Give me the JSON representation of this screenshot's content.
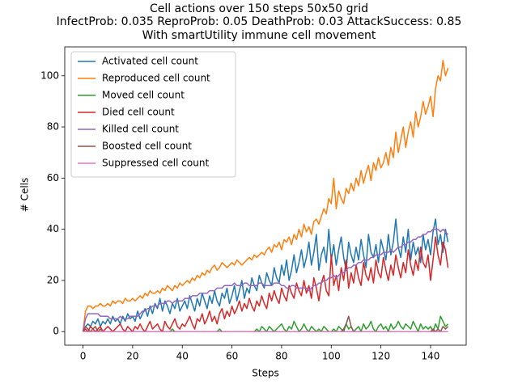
{
  "chart_data": {
    "type": "line",
    "title": [
      "Cell actions over 150 steps 50x50 grid",
      "InfectProb: 0.035 ReproProb: 0.05 DeathProb: 0.03 AttackSuccess: 0.85",
      "With smartUtility immune cell movement"
    ],
    "x_label": "Steps",
    "y_label": "# Cells",
    "xlim": [
      -7.35,
      154.35
    ],
    "ylim": [
      -5.3,
      111.3
    ],
    "xticks": [
      0,
      20,
      40,
      60,
      80,
      100,
      120,
      140
    ],
    "yticks": [
      0,
      20,
      40,
      60,
      80,
      100
    ],
    "legend": "upper left",
    "x": [
      0,
      1,
      2,
      3,
      4,
      5,
      6,
      7,
      8,
      9,
      10,
      11,
      12,
      13,
      14,
      15,
      16,
      17,
      18,
      19,
      20,
      21,
      22,
      23,
      24,
      25,
      26,
      27,
      28,
      29,
      30,
      31,
      32,
      33,
      34,
      35,
      36,
      37,
      38,
      39,
      40,
      41,
      42,
      43,
      44,
      45,
      46,
      47,
      48,
      49,
      50,
      51,
      52,
      53,
      54,
      55,
      56,
      57,
      58,
      59,
      60,
      61,
      62,
      63,
      64,
      65,
      66,
      67,
      68,
      69,
      70,
      71,
      72,
      73,
      74,
      75,
      76,
      77,
      78,
      79,
      80,
      81,
      82,
      83,
      84,
      85,
      86,
      87,
      88,
      89,
      90,
      91,
      92,
      93,
      94,
      95,
      96,
      97,
      98,
      99,
      100,
      101,
      102,
      103,
      104,
      105,
      106,
      107,
      108,
      109,
      110,
      111,
      112,
      113,
      114,
      115,
      116,
      117,
      118,
      119,
      120,
      121,
      122,
      123,
      124,
      125,
      126,
      127,
      128,
      129,
      130,
      131,
      132,
      133,
      134,
      135,
      136,
      137,
      138,
      139,
      140,
      141,
      142,
      143,
      144,
      145,
      146,
      147
    ],
    "series": [
      {
        "name": "Activated cell count",
        "color": "#1f77b4",
        "values": [
          0,
          2,
          3,
          2,
          4,
          3,
          5,
          2,
          4,
          3,
          5,
          3,
          6,
          4,
          5,
          3,
          6,
          4,
          7,
          5,
          6,
          4,
          8,
          5,
          7,
          9,
          6,
          10,
          7,
          11,
          9,
          13,
          8,
          12,
          10,
          7,
          11,
          9,
          13,
          8,
          10,
          12,
          9,
          14,
          11,
          8,
          13,
          10,
          15,
          12,
          9,
          14,
          11,
          16,
          12,
          10,
          15,
          13,
          17,
          11,
          14,
          18,
          12,
          16,
          20,
          13,
          17,
          15,
          21,
          18,
          16,
          22,
          19,
          17,
          23,
          20,
          18,
          25,
          21,
          19,
          26,
          22,
          28,
          20,
          24,
          30,
          23,
          27,
          32,
          25,
          29,
          35,
          26,
          31,
          38,
          24,
          30,
          33,
          27,
          40,
          28,
          34,
          26,
          32,
          37,
          29,
          24,
          35,
          30,
          27,
          33,
          28,
          36,
          30,
          25,
          38,
          31,
          29,
          34,
          27,
          36,
          32,
          28,
          38,
          30,
          35,
          44,
          33,
          29,
          37,
          31,
          40,
          28,
          35,
          30,
          33,
          27,
          38,
          32,
          36,
          30,
          39,
          44,
          34,
          38,
          31,
          40,
          35
        ]
      },
      {
        "name": "Reproduced cell count",
        "color": "#ff7f0e",
        "values": [
          0,
          8,
          10,
          10,
          9,
          10,
          10,
          11,
          10,
          10,
          11,
          10,
          12,
          11,
          12,
          12,
          11,
          13,
          12,
          12,
          13,
          12,
          13,
          14,
          13,
          15,
          14,
          16,
          15,
          15,
          16,
          15,
          17,
          16,
          18,
          17,
          16,
          18,
          17,
          19,
          18,
          19,
          20,
          19,
          21,
          20,
          22,
          21,
          23,
          22,
          24,
          23,
          25,
          26,
          24,
          25,
          27,
          26,
          25,
          26,
          27,
          26,
          28,
          27,
          26,
          27,
          28,
          29,
          28,
          30,
          29,
          30,
          31,
          30,
          32,
          33,
          31,
          34,
          33,
          35,
          32,
          36,
          35,
          37,
          34,
          38,
          36,
          40,
          37,
          42,
          39,
          41,
          38,
          43,
          44,
          42,
          45,
          48,
          46,
          52,
          50,
          60,
          48,
          55,
          52,
          50,
          56,
          54,
          58,
          55,
          60,
          57,
          63,
          58,
          62,
          65,
          59,
          66,
          63,
          68,
          64,
          66,
          70,
          65,
          72,
          68,
          78,
          70,
          75,
          80,
          72,
          78,
          82,
          76,
          86,
          80,
          84,
          90,
          85,
          88,
          92,
          84,
          95,
          100,
          98,
          106,
          100,
          103
        ]
      },
      {
        "name": "Moved cell count",
        "color": "#2ca02c",
        "values": [
          0,
          0,
          0,
          0,
          0,
          0,
          0,
          0,
          0,
          0,
          0,
          0,
          0,
          0,
          0,
          0,
          0,
          0,
          0,
          0,
          0,
          0,
          0,
          0,
          0,
          0,
          0,
          0,
          0,
          0,
          0,
          0,
          0,
          0,
          0,
          0,
          1,
          0,
          0,
          0,
          0,
          0,
          0,
          0,
          0,
          0,
          0,
          0,
          0,
          0,
          0,
          0,
          0,
          0,
          0,
          1,
          0,
          0,
          0,
          0,
          0,
          0,
          0,
          0,
          0,
          0,
          0,
          0,
          0,
          0,
          1,
          0,
          2,
          1,
          0,
          2,
          1,
          0,
          1,
          2,
          3,
          1,
          0,
          2,
          1,
          4,
          2,
          0,
          1,
          3,
          1,
          0,
          2,
          1,
          0,
          1,
          0,
          2,
          1,
          0,
          0,
          1,
          0,
          2,
          1,
          0,
          3,
          1,
          2,
          0,
          1,
          2,
          0,
          3,
          1,
          2,
          4,
          1,
          0,
          2,
          3,
          1,
          2,
          0,
          3,
          1,
          2,
          4,
          2,
          1,
          3,
          2,
          1,
          4,
          2,
          0,
          3,
          1,
          2,
          1,
          2,
          0,
          3,
          1,
          6,
          4,
          2,
          3
        ]
      },
      {
        "name": "Died cell count",
        "color": "#d62728",
        "values": [
          0,
          1,
          0,
          2,
          1,
          0,
          1,
          2,
          0,
          1,
          2,
          1,
          0,
          1,
          2,
          3,
          1,
          0,
          2,
          1,
          0,
          2,
          1,
          3,
          1,
          0,
          2,
          4,
          1,
          2,
          3,
          1,
          0,
          4,
          2,
          1,
          3,
          5,
          2,
          1,
          3,
          2,
          4,
          6,
          3,
          1,
          5,
          4,
          7,
          3,
          5,
          8,
          4,
          6,
          3,
          7,
          9,
          5,
          8,
          6,
          10,
          7,
          9,
          12,
          8,
          11,
          9,
          13,
          10,
          8,
          12,
          10,
          14,
          11,
          9,
          15,
          12,
          16,
          13,
          11,
          17,
          14,
          12,
          18,
          15,
          13,
          19,
          16,
          14,
          20,
          15,
          18,
          13,
          21,
          17,
          12,
          19,
          22,
          16,
          14,
          30,
          18,
          22,
          16,
          25,
          20,
          28,
          17,
          23,
          19,
          26,
          21,
          18,
          27,
          22,
          20,
          25,
          19,
          28,
          23,
          21,
          29,
          24,
          20,
          26,
          22,
          30,
          25,
          21,
          27,
          23,
          32,
          26,
          22,
          28,
          24,
          33,
          27,
          25,
          30,
          20,
          28,
          37,
          30,
          26,
          35,
          32,
          25
        ]
      },
      {
        "name": "Killed cell count",
        "color": "#9467bd",
        "values": [
          0,
          5,
          7,
          7,
          7,
          7,
          7,
          6,
          6,
          6,
          6,
          5,
          5,
          5,
          5,
          6,
          5,
          5,
          5,
          6,
          6,
          6,
          6,
          7,
          8,
          8,
          9,
          9,
          10,
          10,
          10,
          11,
          11,
          11,
          12,
          12,
          11,
          12,
          12,
          12,
          12,
          13,
          13,
          13,
          14,
          14,
          14,
          15,
          15,
          15,
          15,
          16,
          16,
          16,
          17,
          17,
          17,
          18,
          18,
          18,
          18,
          19,
          18,
          18,
          18,
          19,
          19,
          18,
          18,
          18,
          18,
          19,
          19,
          18,
          18,
          18,
          18,
          19,
          19,
          19,
          18,
          18,
          17,
          17,
          18,
          18,
          17,
          17,
          17,
          17,
          17,
          16,
          17,
          18,
          18,
          19,
          19,
          20,
          20,
          21,
          21,
          22,
          21,
          22,
          23,
          23,
          24,
          25,
          25,
          26,
          26,
          27,
          27,
          28,
          28,
          28,
          29,
          29,
          30,
          30,
          30,
          31,
          31,
          31,
          32,
          31,
          32,
          33,
          33,
          34,
          34,
          35,
          35,
          36,
          36,
          37,
          37,
          38,
          38,
          39,
          39,
          40,
          40,
          40,
          39,
          40,
          39,
          38
        ]
      },
      {
        "name": "Boosted cell count",
        "color": "#8c564b",
        "values": [
          0,
          2,
          1,
          0,
          1,
          2,
          0,
          1,
          0,
          0,
          0,
          0,
          0,
          0,
          0,
          0,
          0,
          0,
          0,
          0,
          0,
          0,
          0,
          0,
          0,
          0,
          0,
          0,
          0,
          0,
          0,
          0,
          0,
          0,
          0,
          0,
          0,
          0,
          0,
          0,
          0,
          0,
          0,
          0,
          0,
          0,
          0,
          0,
          0,
          0,
          0,
          0,
          0,
          0,
          0,
          0,
          0,
          0,
          0,
          0,
          0,
          0,
          0,
          0,
          0,
          0,
          0,
          0,
          0,
          0,
          0,
          0,
          0,
          0,
          0,
          0,
          0,
          0,
          0,
          0,
          0,
          0,
          0,
          0,
          0,
          0,
          0,
          0,
          0,
          0,
          0,
          0,
          0,
          0,
          0,
          0,
          0,
          0,
          0,
          0,
          0,
          0,
          0,
          0,
          0,
          1,
          3,
          6,
          2,
          0,
          0,
          0,
          0,
          0,
          0,
          0,
          0,
          0,
          0,
          0,
          0,
          0,
          0,
          0,
          0,
          0,
          0,
          0,
          0,
          0,
          0,
          0,
          0,
          0,
          0,
          0,
          0,
          0,
          0,
          0,
          0,
          1,
          0,
          1,
          0,
          2,
          1,
          2
        ]
      },
      {
        "name": "Suppressed cell count",
        "color": "#e377c2",
        "values": [
          0,
          0,
          0,
          0,
          0,
          0,
          0,
          0,
          0,
          0,
          0,
          0,
          0,
          0,
          0,
          0,
          0,
          0,
          0,
          0,
          0,
          0,
          0,
          0,
          0,
          0,
          0,
          0,
          0,
          0,
          0,
          0,
          0,
          0,
          0,
          0,
          0,
          0,
          0,
          0,
          0,
          0,
          0,
          0,
          0,
          0,
          0,
          0,
          0,
          0,
          0,
          0,
          0,
          0,
          0,
          0,
          0,
          0,
          0,
          0,
          0,
          0,
          0,
          0,
          0,
          0,
          0,
          0,
          0,
          0,
          0,
          0,
          0,
          0,
          0,
          0,
          0,
          0,
          0,
          0,
          0,
          0,
          0,
          0,
          0,
          0,
          0,
          0,
          0,
          0,
          0,
          0,
          0,
          0,
          0,
          0,
          0,
          0,
          0,
          0,
          0,
          0,
          0,
          0,
          0,
          0,
          0,
          0,
          0,
          0,
          0,
          0,
          0,
          0,
          0,
          0,
          0,
          0,
          0,
          0,
          0,
          0,
          0,
          0,
          0,
          0,
          0,
          0,
          0,
          0,
          0,
          0,
          0,
          0,
          0,
          0,
          0,
          0,
          0,
          0,
          0,
          0,
          0,
          0,
          0,
          0,
          0,
          0
        ]
      }
    ]
  }
}
